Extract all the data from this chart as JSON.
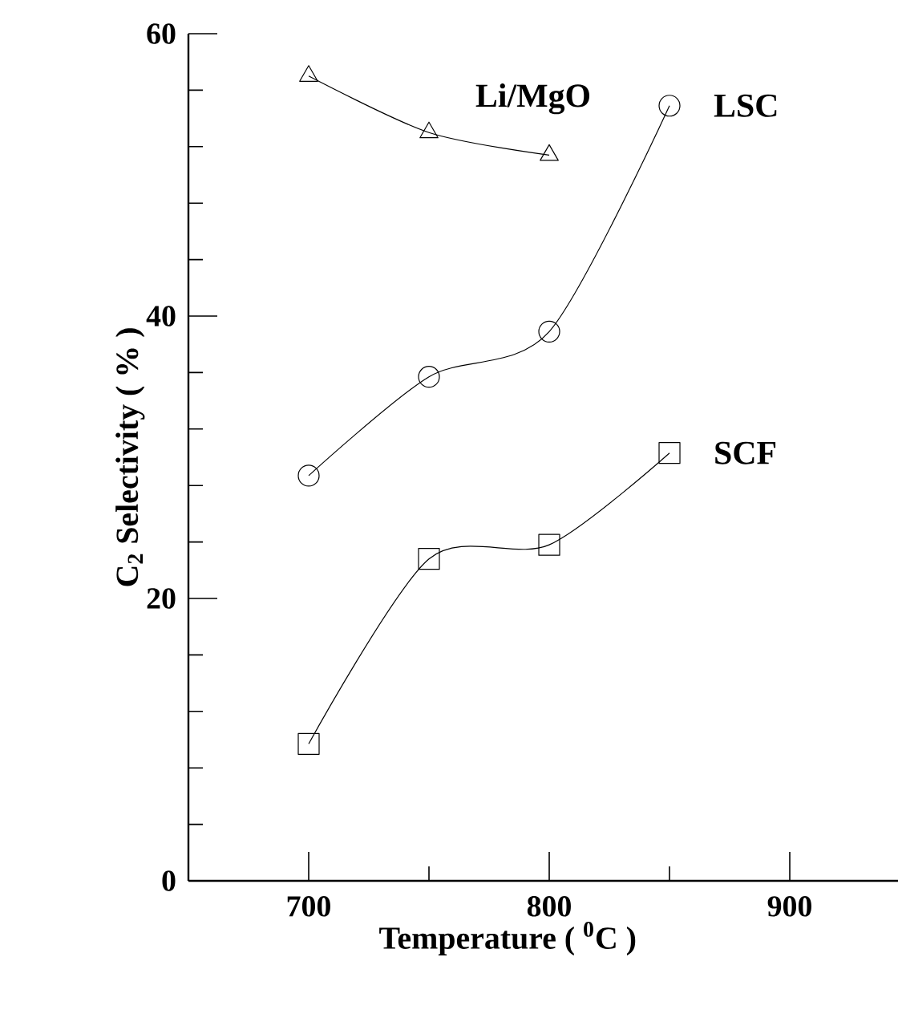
{
  "chart_data": {
    "type": "line",
    "xlabel": "Temperature ( $^{0}$C )",
    "ylabel": "C$_{2}$ Selectivity ( % )",
    "x": [
      700,
      750,
      800,
      850
    ],
    "series": [
      {
        "name": "Li/MgO",
        "color": "#000000",
        "marker": "triangle",
        "x": [
          700,
          750,
          800
        ],
        "values": [
          57,
          53,
          51.4
        ]
      },
      {
        "name": "LSC",
        "color": "#000000",
        "marker": "circle",
        "values": [
          28.7,
          35.7,
          38.9,
          54.9
        ]
      },
      {
        "name": "SCF",
        "color": "#000000",
        "marker": "square",
        "values": [
          9.7,
          22.8,
          23.8,
          30.3
        ]
      }
    ],
    "xlim": [
      650,
      945
    ],
    "ylim": [
      0,
      60
    ],
    "xticks": [
      {
        "value": 650,
        "label": null
      },
      700,
      {
        "value": 750,
        "label": null
      },
      800,
      {
        "value": 850,
        "label": null
      },
      900
    ],
    "yticks": [
      0,
      {
        "value": 4,
        "label": null
      },
      {
        "value": 8,
        "label": null
      },
      {
        "value": 12,
        "label": null
      },
      {
        "value": 16,
        "label": null
      },
      20,
      {
        "value": 24,
        "label": null
      },
      {
        "value": 28,
        "label": null
      },
      {
        "value": 32,
        "label": null
      },
      {
        "value": 36,
        "label": null
      },
      40,
      {
        "value": 44,
        "label": null
      },
      {
        "value": 48,
        "label": null
      },
      {
        "value": 52,
        "label": null
      },
      {
        "value": 56,
        "label": null
      },
      60
    ],
    "legend": false,
    "grid": false
  }
}
